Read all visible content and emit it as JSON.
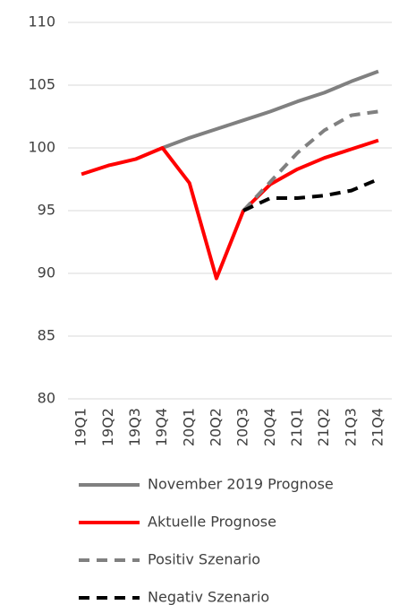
{
  "chart_data": {
    "type": "line",
    "categories": [
      "19Q1",
      "19Q2",
      "19Q3",
      "19Q4",
      "20Q1",
      "20Q2",
      "20Q3",
      "20Q4",
      "21Q1",
      "21Q2",
      "21Q3",
      "21Q4"
    ],
    "series": [
      {
        "name": "November 2019 Prognose",
        "color": "#808080",
        "dash": false,
        "values": [
          null,
          null,
          null,
          100.0,
          100.8,
          101.5,
          102.2,
          102.9,
          103.7,
          104.4,
          105.3,
          106.1
        ]
      },
      {
        "name": "Aktuelle Prognose",
        "color": "#ff0000",
        "dash": false,
        "values": [
          97.9,
          98.6,
          99.1,
          100.0,
          97.2,
          89.6,
          95.0,
          97.1,
          98.3,
          99.2,
          99.9,
          100.6
        ]
      },
      {
        "name": "Positiv Szenario",
        "color": "#808080",
        "dash": true,
        "values": [
          null,
          null,
          null,
          null,
          null,
          null,
          95.0,
          97.3,
          99.6,
          101.4,
          102.6,
          102.9
        ]
      },
      {
        "name": "Negativ Szenario",
        "color": "#000000",
        "dash": true,
        "values": [
          null,
          null,
          null,
          null,
          null,
          null,
          95.0,
          96.0,
          96.0,
          96.2,
          96.6,
          97.5
        ]
      }
    ],
    "ylim": [
      80,
      110
    ],
    "yticks": [
      80,
      85,
      90,
      95,
      100,
      105,
      110
    ],
    "grid": true,
    "legend": "bottom"
  }
}
